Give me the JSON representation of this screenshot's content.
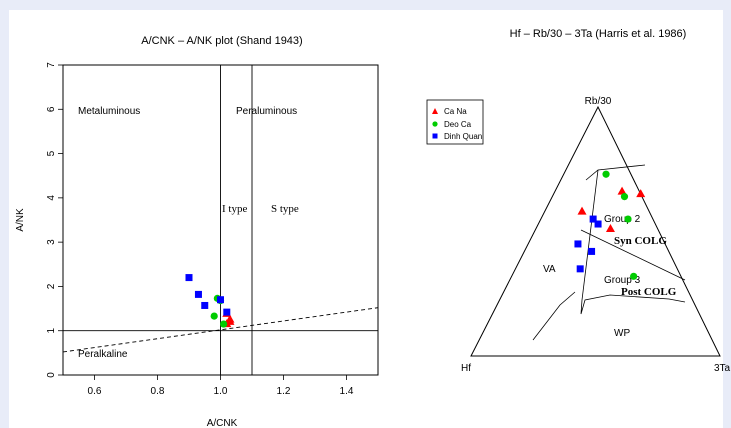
{
  "chart_data": [
    {
      "type": "scatter",
      "title": "A/CNK – A/NK plot (Shand 1943)",
      "xlabel": "A/CNK",
      "ylabel": "A/NK",
      "xlim": [
        0.5,
        1.5
      ],
      "ylim": [
        0,
        7
      ],
      "x_ticks": [
        "0.6",
        "0.8",
        "1.0",
        "1.2",
        "1.4"
      ],
      "y_ticks": [
        "0",
        "1",
        "2",
        "3",
        "4",
        "5",
        "6",
        "7"
      ],
      "grid": false,
      "region_labels": [
        "Metaluminous",
        "Peraluminous",
        "I type",
        "S type",
        "Peralkaline"
      ],
      "reference_lines": [
        {
          "kind": "vertical",
          "x": 1.0
        },
        {
          "kind": "vertical",
          "x": 1.1
        },
        {
          "kind": "horizontal",
          "y": 1.0
        },
        {
          "kind": "dashed",
          "from": [
            0.5,
            0.52
          ],
          "to": [
            1.5,
            1.52
          ]
        }
      ],
      "series": [
        {
          "name": "Ca Na",
          "color": "#ff0000",
          "marker": "triangle",
          "points": [
            [
              1.02,
              1.38
            ],
            [
              1.03,
              1.25
            ],
            [
              1.02,
              1.15
            ],
            [
              1.03,
              1.2
            ]
          ]
        },
        {
          "name": "Deo Ca",
          "color": "#00cc00",
          "marker": "circle",
          "points": [
            [
              0.99,
              1.73
            ],
            [
              1.0,
              1.68
            ],
            [
              0.98,
              1.33
            ],
            [
              1.01,
              1.15
            ]
          ]
        },
        {
          "name": "Dinh Quan",
          "color": "#0000ff",
          "marker": "square",
          "points": [
            [
              0.9,
              2.2
            ],
            [
              0.93,
              1.82
            ],
            [
              0.95,
              1.57
            ],
            [
              1.0,
              1.7
            ],
            [
              1.02,
              1.42
            ]
          ]
        }
      ]
    },
    {
      "type": "scatter",
      "subtype": "ternary",
      "title": "Hf – Rb/30 – 3Ta (Harris et al. 1986)",
      "vertices": {
        "top": "Rb/30",
        "left": "Hf",
        "right": "3Ta"
      },
      "field_labels": [
        "Group 2",
        "Syn COLG",
        "VA",
        "Group 3",
        "Post COLG",
        "WP"
      ],
      "legend": {
        "position": "top-left",
        "entries": [
          "Ca Na",
          "Deo Ca",
          "Dinh Quan"
        ]
      },
      "series": [
        {
          "name": "Ca Na",
          "color": "#ff0000",
          "marker": "triangle",
          "points": [
            [
              0.07,
              0.66,
              0.27
            ],
            [
              0.0,
              0.65,
              0.35
            ],
            [
              0.27,
              0.58,
              0.15
            ],
            [
              0.19,
              0.51,
              0.3
            ]
          ]
        },
        {
          "name": "Deo Ca",
          "color": "#00cc00",
          "marker": "circle",
          "points": [
            [
              0.1,
              0.73,
              0.17
            ],
            [
              0.07,
              0.64,
              0.29
            ],
            [
              0.1,
              0.55,
              0.35
            ],
            [
              0.19,
              0.32,
              0.49
            ]
          ]
        },
        {
          "name": "Dinh Quan",
          "color": "#0000ff",
          "marker": "square",
          "points": [
            [
              0.24,
              0.55,
              0.21
            ],
            [
              0.23,
              0.53,
              0.24
            ],
            [
              0.35,
              0.45,
              0.2
            ],
            [
              0.31,
              0.42,
              0.27
            ],
            [
              0.39,
              0.35,
              0.26
            ]
          ]
        }
      ]
    }
  ]
}
